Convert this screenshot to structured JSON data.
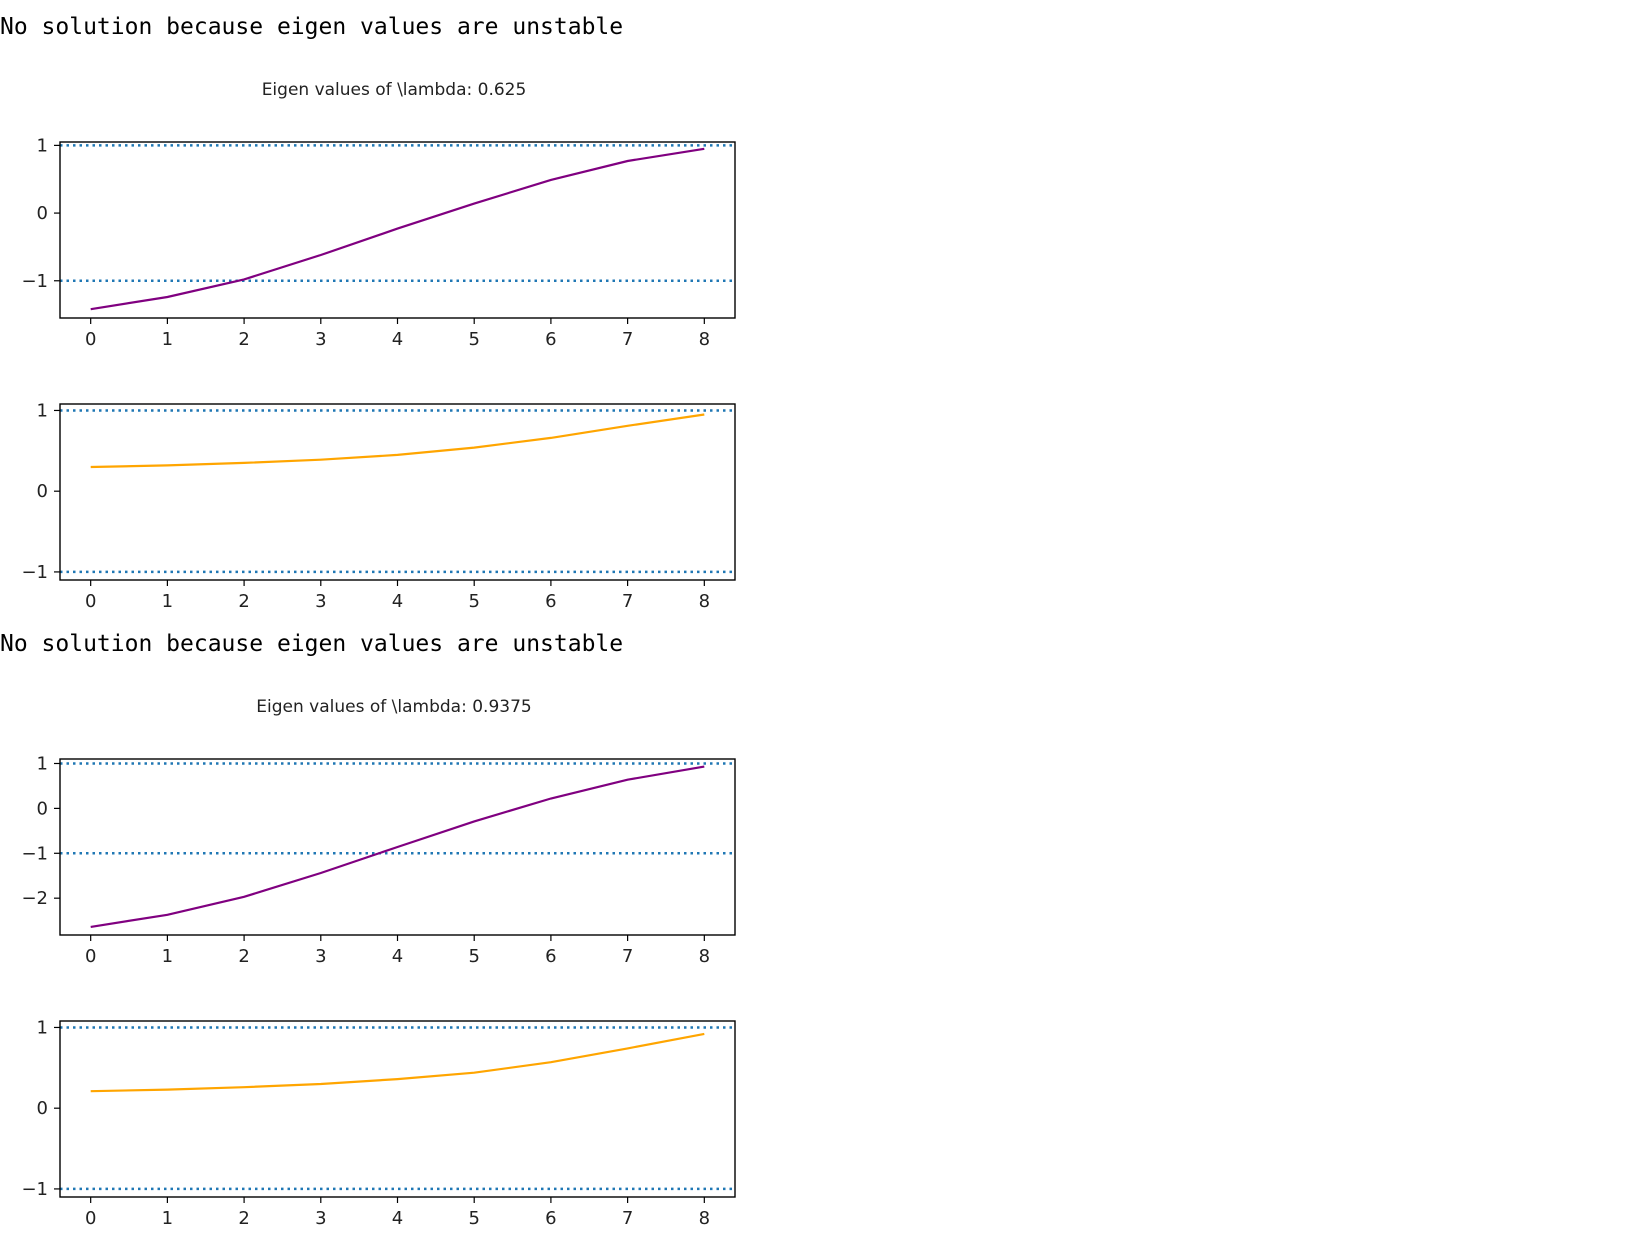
{
  "blocks": [
    {
      "message": "No solution because eigen values are unstable",
      "title": "Eigen values of \\lambda: 0.625"
    },
    {
      "message": "No solution because eigen values are unstable",
      "title": "Eigen values of \\lambda: 0.9375"
    }
  ],
  "colors": {
    "purple": "#800080",
    "orange": "#ffa500",
    "reference": "#1f77b4"
  },
  "chart_data": [
    {
      "type": "line",
      "title": "Eigen values of \\lambda: 0.625",
      "x": [
        0,
        1,
        2,
        3,
        4,
        5,
        6,
        7,
        8
      ],
      "series": [
        {
          "values": [
            -1.42,
            -1.24,
            -0.98,
            -0.62,
            -0.23,
            0.14,
            0.49,
            0.77,
            0.95
          ]
        }
      ],
      "xlim": [
        -0.4,
        8.4
      ],
      "ylim": [
        -1.55,
        1.05
      ],
      "xticks": [
        0,
        1,
        2,
        3,
        4,
        5,
        6,
        7,
        8
      ],
      "yticks": [
        -1,
        0,
        1
      ],
      "reference_lines": [
        1,
        -1
      ],
      "line_color": "#800080"
    },
    {
      "type": "line",
      "x": [
        0,
        1,
        2,
        3,
        4,
        5,
        6,
        7,
        8
      ],
      "series": [
        {
          "values": [
            0.3,
            0.32,
            0.35,
            0.39,
            0.45,
            0.54,
            0.66,
            0.81,
            0.95
          ]
        }
      ],
      "xlim": [
        -0.4,
        8.4
      ],
      "ylim": [
        -1.1,
        1.08
      ],
      "xticks": [
        0,
        1,
        2,
        3,
        4,
        5,
        6,
        7,
        8
      ],
      "yticks": [
        -1,
        0,
        1
      ],
      "reference_lines": [
        1,
        -1
      ],
      "line_color": "#ffa500"
    },
    {
      "type": "line",
      "title": "Eigen values of \\lambda: 0.9375",
      "x": [
        0,
        1,
        2,
        3,
        4,
        5,
        6,
        7,
        8
      ],
      "series": [
        {
          "values": [
            -2.64,
            -2.37,
            -1.97,
            -1.44,
            -0.86,
            -0.29,
            0.22,
            0.64,
            0.93
          ]
        }
      ],
      "xlim": [
        -0.4,
        8.4
      ],
      "ylim": [
        -2.82,
        1.1
      ],
      "xticks": [
        0,
        1,
        2,
        3,
        4,
        5,
        6,
        7,
        8
      ],
      "yticks": [
        -2,
        -1,
        0,
        1
      ],
      "reference_lines": [
        1,
        -1
      ],
      "line_color": "#800080"
    },
    {
      "type": "line",
      "x": [
        0,
        1,
        2,
        3,
        4,
        5,
        6,
        7,
        8
      ],
      "series": [
        {
          "values": [
            0.21,
            0.23,
            0.26,
            0.3,
            0.36,
            0.44,
            0.57,
            0.74,
            0.92
          ]
        }
      ],
      "xlim": [
        -0.4,
        8.4
      ],
      "ylim": [
        -1.1,
        1.08
      ],
      "xticks": [
        0,
        1,
        2,
        3,
        4,
        5,
        6,
        7,
        8
      ],
      "yticks": [
        -1,
        0,
        1
      ],
      "reference_lines": [
        1,
        -1
      ],
      "line_color": "#ffa500"
    }
  ]
}
